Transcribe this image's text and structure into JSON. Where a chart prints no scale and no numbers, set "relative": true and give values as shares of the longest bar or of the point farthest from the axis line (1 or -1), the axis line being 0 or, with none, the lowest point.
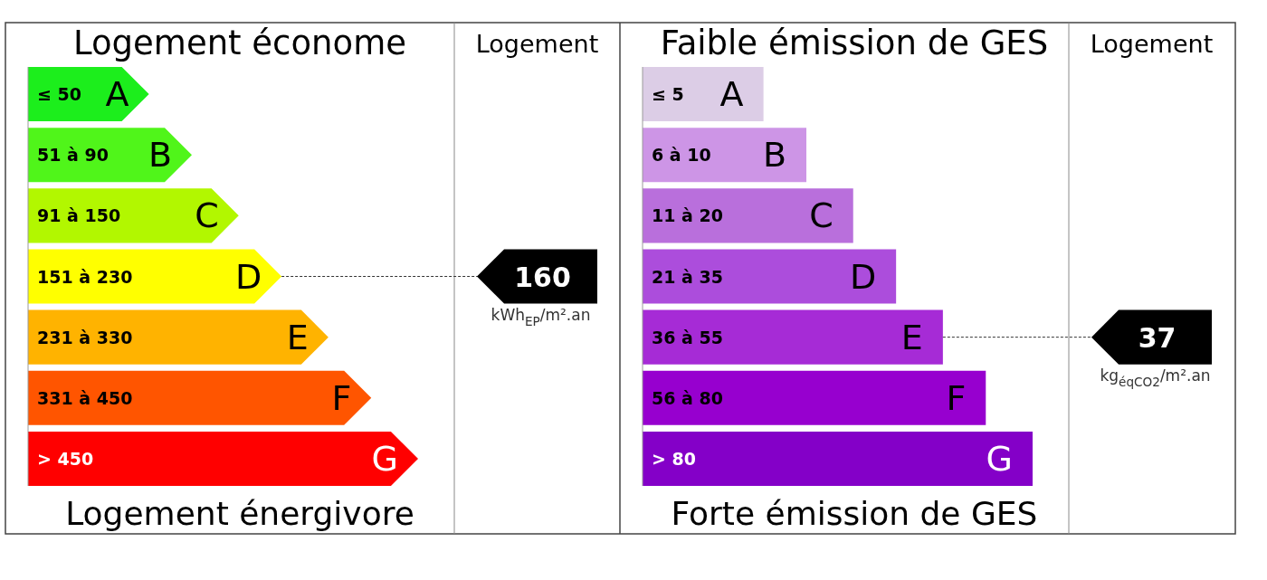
{
  "chart_data": [
    {
      "type": "bar",
      "orientation": "horizontal",
      "relative": true,
      "title": "Logement économe",
      "xlabel": "Logement énergivore",
      "categories": [
        "≤ 50",
        "51 à 90",
        "91 à 150",
        "151 à 230",
        "231 à 330",
        "331 à 450",
        "> 450"
      ],
      "values": [
        0.31,
        0.42,
        0.54,
        0.65,
        0.77,
        0.88,
        1
      ],
      "colors": [
        "#1cee1c",
        "#50f51a",
        "#b2f700",
        "#ffff00",
        "#ffb300",
        "#ff5500",
        "#ff0000"
      ],
      "annotations": [
        "Logement",
        {
          "text": "A",
          "x": 0.31,
          "y": "≤ 50"
        },
        {
          "text": "B",
          "x": 0.42,
          "y": "51 à 90"
        },
        {
          "text": "C",
          "x": 0.54,
          "y": "91 à 150"
        },
        {
          "text": "D",
          "x": 0.65,
          "y": "151 à 230"
        },
        {
          "text": "E",
          "x": 0.77,
          "y": "231 à 330"
        },
        {
          "text": "F",
          "x": 0.88,
          "y": "331 à 450"
        },
        {
          "text": "G",
          "x": 1,
          "y": "> 450"
        },
        {
          "text": "160",
          "x": 0.65,
          "y": "151 à 230"
        },
        "kWh$_{EP}$/m².an"
      ]
    },
    {
      "type": "bar",
      "orientation": "horizontal",
      "relative": true,
      "title": "Faible émission de GES",
      "xlabel": "Forte émission de GES",
      "categories": [
        "≤ 5",
        "6 à 10",
        "11 à 20",
        "21 à 35",
        "36 à 55",
        "56 à 80",
        "> 80"
      ],
      "values": [
        0.31,
        0.42,
        0.54,
        0.65,
        0.77,
        0.88,
        1
      ],
      "colors": [
        "#dccde6",
        "#cd95e6",
        "#b96fdc",
        "#ac4ddc",
        "#a62bd6",
        "#9700cf",
        "#8400c8"
      ],
      "annotations": [
        "Logement",
        {
          "text": "A",
          "x": 0.31,
          "y": "≤ 5"
        },
        {
          "text": "B",
          "x": 0.42,
          "y": "6 à 10"
        },
        {
          "text": "C",
          "x": 0.54,
          "y": "11 à 20"
        },
        {
          "text": "D",
          "x": 0.65,
          "y": "21 à 35"
        },
        {
          "text": "E",
          "x": 0.77,
          "y": "36 à 55"
        },
        {
          "text": "F",
          "x": 0.88,
          "y": "56 à 80"
        },
        {
          "text": "G",
          "x": 1,
          "y": "> 80"
        },
        {
          "text": "37",
          "x": 0.77,
          "y": "36 à 55"
        },
        "kg$_{éqCO2}$/m².an"
      ]
    }
  ]
}
